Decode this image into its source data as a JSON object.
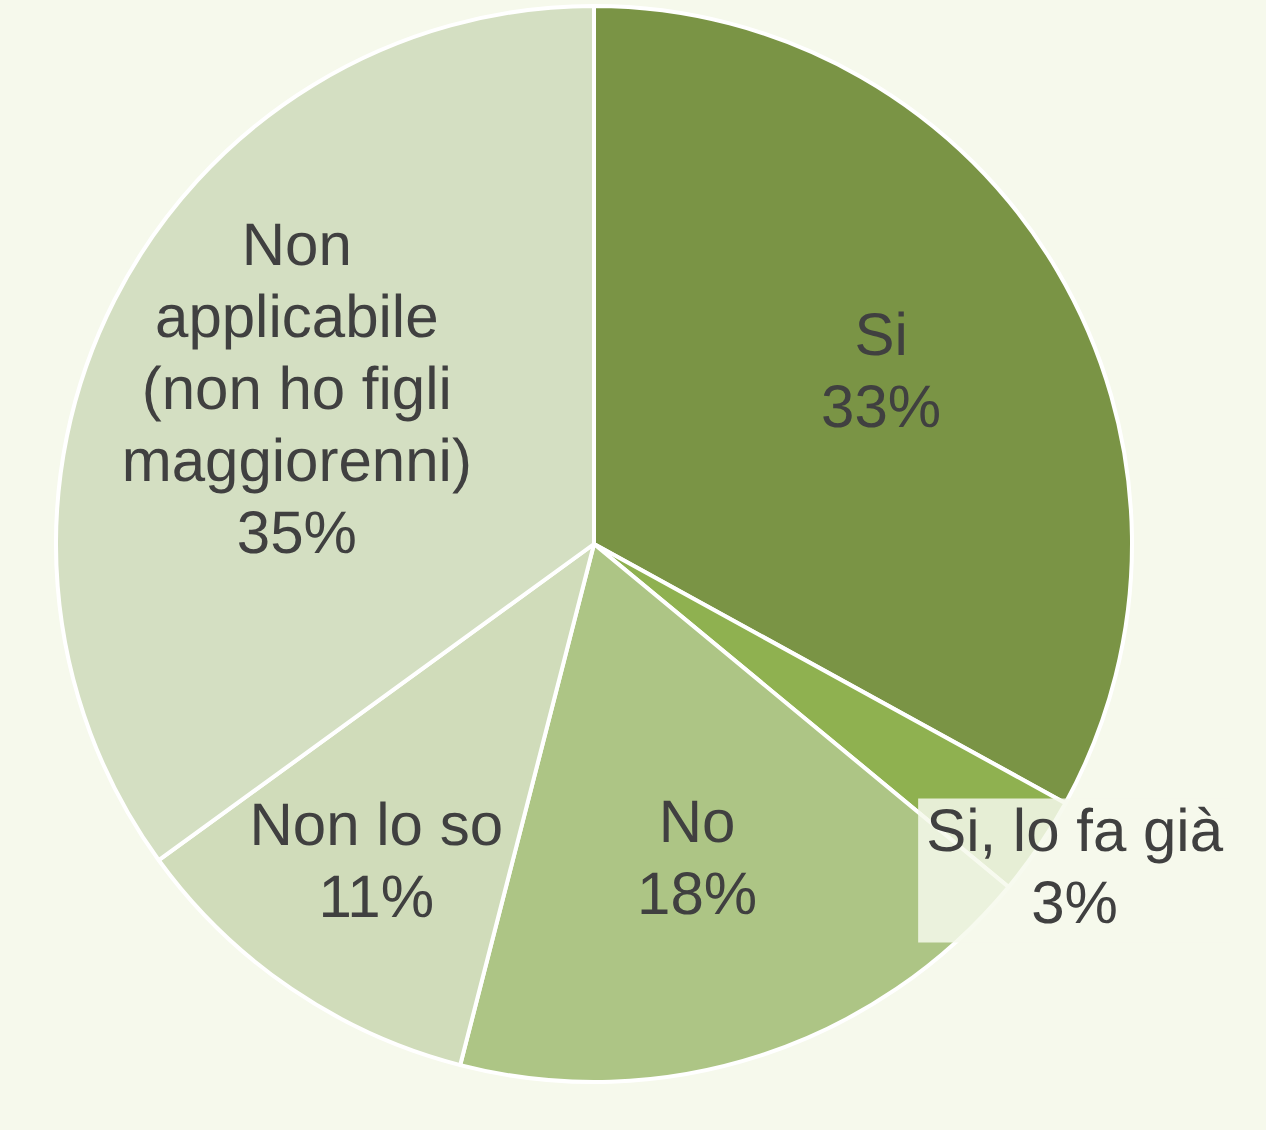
{
  "chart_data": {
    "type": "pie",
    "categories": [
      "Si",
      "Si, lo fa già",
      "No",
      "Non lo so",
      "Non applicabile (non ho figli maggiorenni)"
    ],
    "values": [
      33,
      3,
      18,
      11,
      35
    ],
    "colors": [
      "#7a9445",
      "#8fb150",
      "#adc585",
      "#d0dcba",
      "#d4dfc2"
    ],
    "value_labels": [
      "33%",
      "3%",
      "18%",
      "11%",
      "35%"
    ],
    "legend": false
  }
}
